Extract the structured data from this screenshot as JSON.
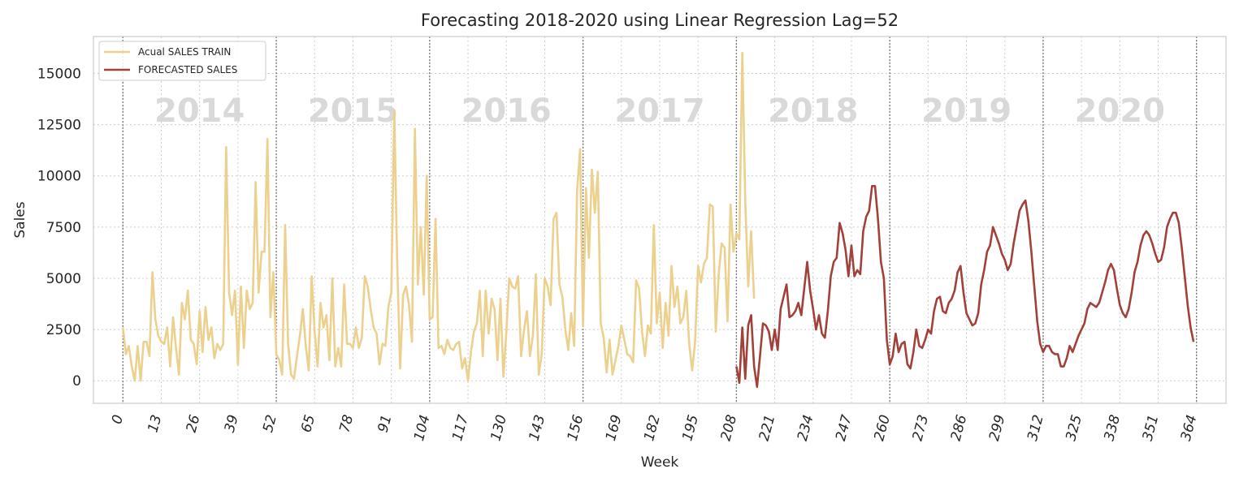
{
  "chart_data": {
    "type": "line",
    "title": "Forecasting 2018-2020 using Linear Regression Lag=52",
    "xlabel": "Week",
    "ylabel": "Sales",
    "xlim": [
      -10,
      374
    ],
    "ylim": [
      -1100,
      16800
    ],
    "xticks": [
      0,
      13,
      26,
      39,
      52,
      65,
      78,
      91,
      104,
      117,
      130,
      143,
      156,
      169,
      182,
      195,
      208,
      221,
      234,
      247,
      260,
      273,
      286,
      299,
      312,
      325,
      338,
      351,
      364
    ],
    "yticks": [
      0,
      2500,
      5000,
      7500,
      10000,
      12500,
      15000
    ],
    "grid": true,
    "legend_position": "top-left",
    "year_dividers": [
      0,
      52,
      104,
      156,
      208,
      260,
      312,
      364
    ],
    "year_labels": [
      {
        "text": "2014",
        "x": 26
      },
      {
        "text": "2015",
        "x": 78
      },
      {
        "text": "2016",
        "x": 130
      },
      {
        "text": "2017",
        "x": 182
      },
      {
        "text": "2018",
        "x": 234
      },
      {
        "text": "2019",
        "x": 286
      },
      {
        "text": "2020",
        "x": 338
      }
    ],
    "series": [
      {
        "name": "Acual SALES TRAIN",
        "color": "#ecd08d",
        "x_start": 0,
        "values": [
          2600,
          1300,
          1700,
          700,
          0,
          1700,
          0,
          1900,
          1900,
          1200,
          5300,
          3000,
          2200,
          1900,
          1800,
          2600,
          700,
          3100,
          1600,
          300,
          3800,
          3000,
          4400,
          2000,
          1800,
          800,
          3400,
          1400,
          3600,
          2000,
          2600,
          1100,
          1800,
          1500,
          1800,
          11400,
          4300,
          3200,
          4400,
          800,
          4600,
          1600,
          4400,
          3500,
          3800,
          9700,
          4300,
          6300,
          6300,
          11800,
          3100,
          5300,
          1300,
          1000,
          300,
          7600,
          1800,
          300,
          100,
          1200,
          2200,
          3500,
          1700,
          500,
          5100,
          2400,
          700,
          3800,
          2600,
          3200,
          1000,
          5000,
          700,
          1600,
          700,
          4700,
          1800,
          1800,
          1600,
          2600,
          1600,
          2100,
          5100,
          4600,
          3500,
          2600,
          2300,
          800,
          1800,
          1700,
          3600,
          4300,
          13200,
          5700,
          600,
          4200,
          4600,
          3700,
          1900,
          12300,
          4700,
          7500,
          4200,
          10000,
          3000,
          3100,
          7900,
          1600,
          1700,
          1300,
          2000,
          1600,
          1500,
          1800,
          1900,
          600,
          1100,
          0,
          1400,
          2400,
          2800,
          4400,
          1200,
          4400,
          2300,
          4000,
          3500,
          1000,
          4000,
          200,
          2400,
          5000,
          4600,
          4500,
          5100,
          1200,
          2500,
          3400,
          1200,
          2200,
          5200,
          300,
          1300,
          5000,
          4600,
          3700,
          7900,
          8200,
          4700,
          4100,
          2500,
          1500,
          3300,
          1700,
          9300,
          11300,
          2700,
          9400,
          6000,
          10300,
          8200,
          10200,
          2800,
          2100,
          400,
          2000,
          300,
          1000,
          1700,
          2700,
          2000,
          1300,
          1200,
          900,
          4900,
          4500,
          2400,
          1200,
          2700,
          2300,
          7600,
          2800,
          4300,
          1600,
          3800,
          2200,
          5600,
          3600,
          4600,
          2800,
          3100,
          4400,
          1800,
          500,
          1900,
          5600,
          4800,
          5700,
          6000,
          8600,
          8500,
          2400,
          5200,
          6700,
          6500,
          2900,
          8600,
          6300,
          7200,
          6900,
          16000,
          8800,
          4600,
          7300,
          4000
        ]
      },
      {
        "name": "FORECASTED SALES",
        "color": "#a1413a",
        "x_start": 208,
        "values": [
          700,
          -100,
          2600,
          100,
          2700,
          3200,
          700,
          -300,
          1200,
          2800,
          2700,
          2400,
          1500,
          2500,
          1500,
          3500,
          4100,
          4700,
          3100,
          3200,
          3400,
          3800,
          3200,
          4500,
          5800,
          4400,
          3500,
          2500,
          3200,
          2300,
          2100,
          3400,
          5100,
          5800,
          6000,
          7700,
          7200,
          6400,
          5100,
          6600,
          5100,
          5400,
          5200,
          7300,
          8000,
          8300,
          9500,
          9500,
          7900,
          5800,
          5000,
          2000,
          800,
          1200,
          2300,
          1400,
          1800,
          1900,
          800,
          600,
          1400,
          2500,
          1700,
          1600,
          2000,
          2500,
          2300,
          3400,
          4000,
          4100,
          3400,
          3300,
          3800,
          4000,
          4400,
          5300,
          5600,
          4300,
          3300,
          3000,
          2700,
          2800,
          3300,
          4700,
          5400,
          6300,
          6600,
          7500,
          7100,
          6700,
          6200,
          5900,
          5400,
          5700,
          6700,
          7500,
          8300,
          8600,
          8800,
          7800,
          6300,
          4600,
          2900,
          1800,
          1400,
          1700,
          1700,
          1400,
          1300,
          1300,
          700,
          700,
          1100,
          1700,
          1400,
          1800,
          2200,
          2500,
          2800,
          3500,
          3800,
          3700,
          3600,
          3800,
          4300,
          4800,
          5400,
          5700,
          5400,
          4500,
          3700,
          3300,
          3100,
          3500,
          4300,
          5300,
          5800,
          6600,
          7100,
          7300,
          7100,
          6700,
          6200,
          5800,
          5900,
          6500,
          7500,
          7900,
          8200,
          8200,
          7700,
          6500,
          5100,
          3700,
          2600,
          1900
        ]
      }
    ]
  }
}
